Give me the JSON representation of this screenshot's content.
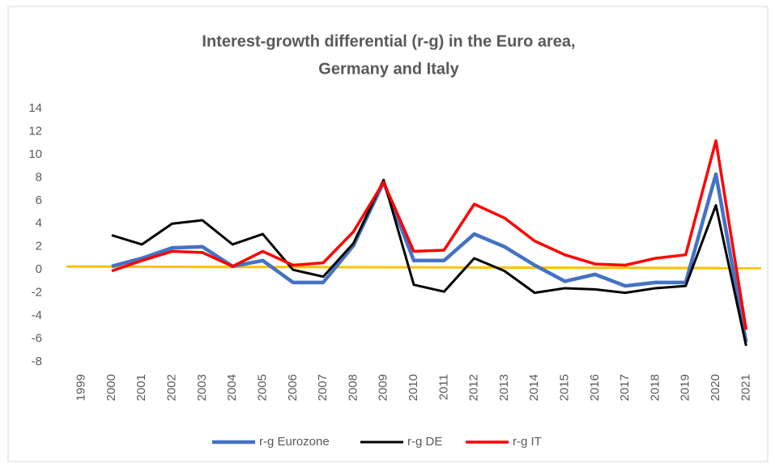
{
  "chart_data": {
    "type": "line",
    "title": [
      "Interest-growth differential  (r-g) in the Euro area,",
      "Germany and Italy"
    ],
    "categories": [
      "1999",
      "2000",
      "2001",
      "2002",
      "2003",
      "2004",
      "2005",
      "2006",
      "2007",
      "2008",
      "2009",
      "2010",
      "2011",
      "2012",
      "2013",
      "2014",
      "2015",
      "2016",
      "2017",
      "2018",
      "2019",
      "2020",
      "2021"
    ],
    "series": [
      {
        "name": "r-g Eurozone",
        "color": "#4472c4",
        "values": [
          null,
          0.3,
          1.0,
          1.9,
          2.0,
          0.3,
          0.8,
          -1.1,
          -1.1,
          2.1,
          7.6,
          0.8,
          0.8,
          3.1,
          2.0,
          0.4,
          -1.0,
          -0.4,
          -1.4,
          -1.1,
          -1.1,
          8.3,
          -6.3
        ]
      },
      {
        "name": "r-g DE",
        "color": "#000000",
        "values": [
          null,
          3.0,
          2.2,
          4.0,
          4.3,
          2.2,
          3.1,
          0.0,
          -0.6,
          2.3,
          7.8,
          -1.3,
          -1.9,
          1.0,
          -0.1,
          -2.0,
          -1.6,
          -1.7,
          -2.0,
          -1.6,
          -1.4,
          5.6,
          -6.6
        ]
      },
      {
        "name": "r-g IT",
        "color": "#ff0000",
        "values": [
          null,
          -0.1,
          0.8,
          1.6,
          1.5,
          0.3,
          1.6,
          0.4,
          0.6,
          3.3,
          7.6,
          1.6,
          1.7,
          5.7,
          4.5,
          2.5,
          1.3,
          0.5,
          0.4,
          1.0,
          1.3,
          11.2,
          -5.2
        ]
      }
    ],
    "ylim": [
      -8,
      14
    ],
    "yticks": [
      -8,
      -6,
      -4,
      -2,
      0,
      2,
      4,
      6,
      8,
      10,
      12,
      14
    ],
    "grid": false,
    "legend": "bottom"
  }
}
